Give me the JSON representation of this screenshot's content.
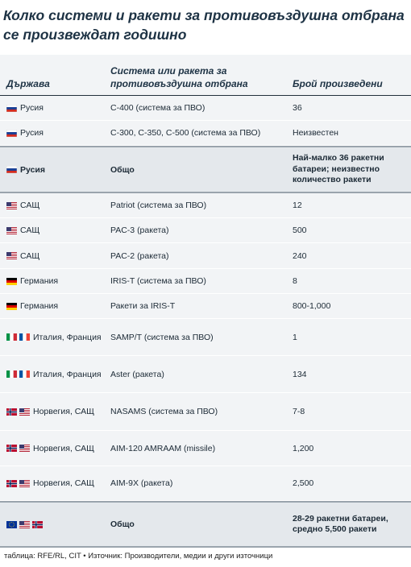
{
  "title": "Колко системи и ракети за противовъздушна отбрана се произвеждат годишно",
  "table": {
    "headers": {
      "country": "Държава",
      "system": "Система или ракета за противовъздушна отбрана",
      "produced": "Брой произведени"
    },
    "rows": [
      {
        "country": "Русия",
        "flags": [
          "ru"
        ],
        "system": "C-400 (система за ПВО)",
        "produced": "36"
      },
      {
        "country": "Русия",
        "flags": [
          "ru"
        ],
        "system": "C-300, C-350, C-500 (система за ПВО)",
        "produced": "Неизвестен"
      },
      {
        "country": "Русия",
        "flags": [
          "ru"
        ],
        "system": "Общо",
        "produced": "Най-малко 36 ракетни батареи; неизвестно количество ракети",
        "total": true
      },
      {
        "country": "САЩ",
        "flags": [
          "us"
        ],
        "system": "Patriot (система за ПВО)",
        "produced": "12"
      },
      {
        "country": "САЩ",
        "flags": [
          "us"
        ],
        "system": "PAC-3 (ракета)",
        "produced": "500"
      },
      {
        "country": "САЩ",
        "flags": [
          "us"
        ],
        "system": "PAC-2 (ракета)",
        "produced": "240"
      },
      {
        "country": "Германия",
        "flags": [
          "de"
        ],
        "system": "IRIS-T (система за ПВО)",
        "produced": "8"
      },
      {
        "country": "Германия",
        "flags": [
          "de"
        ],
        "system": "Ракети за IRIS-T",
        "produced": "800-1,000"
      },
      {
        "country": "Италия, Франция",
        "flags": [
          "it",
          "fr"
        ],
        "system": "SAMP/T (система за ПВО)",
        "produced": "1"
      },
      {
        "country": "Италия, Франция",
        "flags": [
          "it",
          "fr"
        ],
        "system": "Aster (ракета)",
        "produced": "134"
      },
      {
        "country": "Норвегия, САЩ",
        "flags": [
          "no",
          "us"
        ],
        "system": "NASAMS (система за ПВО)",
        "produced": "7-8"
      },
      {
        "country": "Норвегия, САЩ",
        "flags": [
          "no",
          "us"
        ],
        "system": "AIM-120 AMRAAM (missile)",
        "produced": "1,200"
      },
      {
        "country": "Норвегия, САЩ",
        "flags": [
          "no",
          "us"
        ],
        "system": "AIM-9X (ракета)",
        "produced": "2,500"
      },
      {
        "country": "",
        "flags": [
          "eu",
          "us",
          "no"
        ],
        "system": "Общо",
        "produced": "28-29 ракетни батареи, средно 5,500 ракети",
        "total": true
      }
    ]
  },
  "footer": "таблица: RFE/RL, CIT • Източник: Производители, медии и други източници"
}
